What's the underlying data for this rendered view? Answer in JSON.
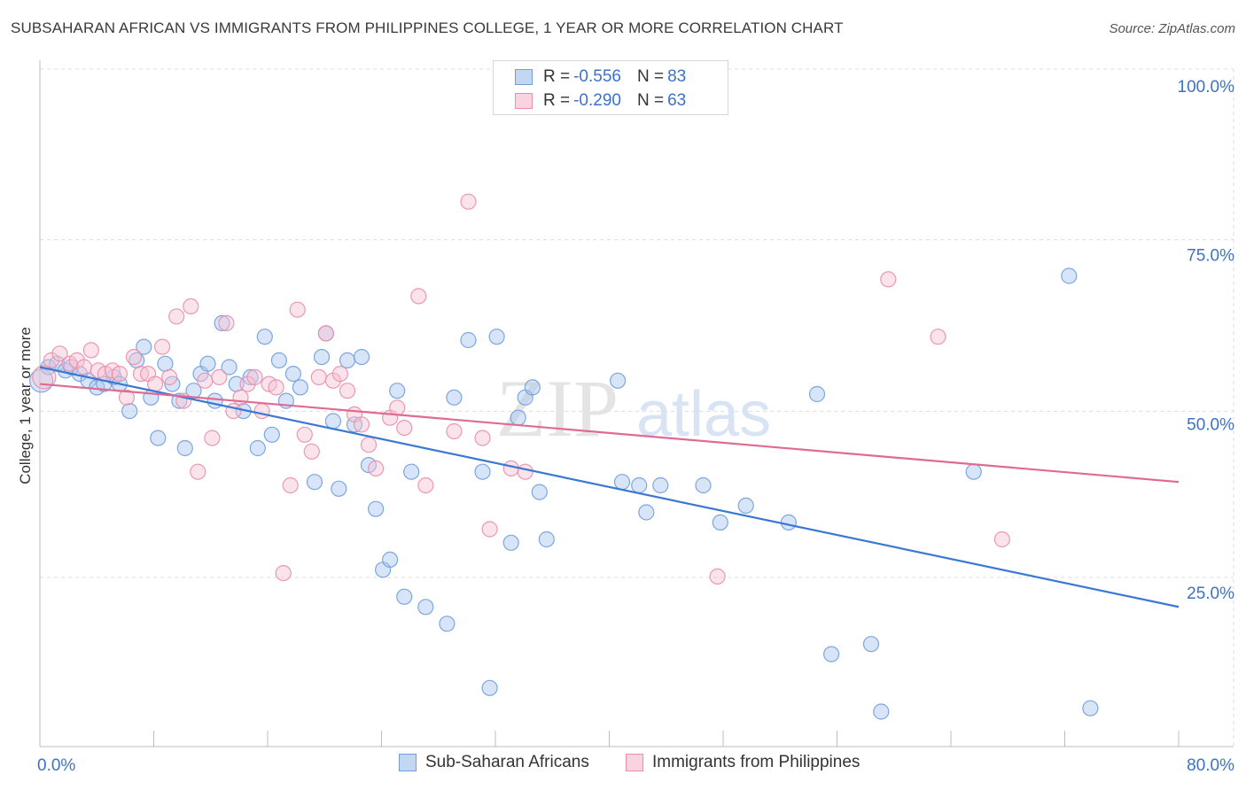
{
  "title": "SUBSAHARAN AFRICAN VS IMMIGRANTS FROM PHILIPPINES COLLEGE, 1 YEAR OR MORE CORRELATION CHART",
  "source": "Source: ZipAtlas.com",
  "watermark": {
    "zip": "ZIP",
    "atlas": "atlas"
  },
  "legend": {
    "r_label": "R =",
    "n_label": "N =",
    "series1": {
      "r": "-0.556",
      "n": "83"
    },
    "series2": {
      "r": "-0.290",
      "n": "63"
    }
  },
  "chart_data": {
    "type": "scatter",
    "ylabel": "College, 1 year or more",
    "xlim": [
      0,
      80
    ],
    "ylim": [
      0,
      100
    ],
    "x_tick_labels": [
      "0.0%",
      "80.0%"
    ],
    "y_ticks": [
      25,
      50,
      75,
      100
    ],
    "y_tick_labels": [
      "25.0%",
      "50.0%",
      "75.0%",
      "100.0%"
    ],
    "grid": true,
    "legend_position": "top-center",
    "colors": {
      "series1_fill": "#a9c6ef",
      "series1_stroke": "#6f9fdc",
      "series1_line": "#3a78d4",
      "series2_fill": "#f6c2d3",
      "series2_stroke": "#ea8eab",
      "series2_line": "#e06a94",
      "tick_label": "#3b72c7"
    },
    "series": [
      {
        "name": "Sub-Saharan Africans",
        "trendline": {
          "x": [
            0,
            80
          ],
          "y": [
            58.5,
            23
          ]
        },
        "points": [
          [
            0.1,
            56.5
          ],
          [
            0.6,
            58.5
          ],
          [
            1.2,
            59.0
          ],
          [
            1.8,
            58.0
          ],
          [
            2.2,
            58.5
          ],
          [
            2.8,
            57.5
          ],
          [
            3.4,
            56.5
          ],
          [
            4.0,
            55.5
          ],
          [
            4.5,
            56.0
          ],
          [
            5.2,
            57.0
          ],
          [
            5.6,
            56.0
          ],
          [
            6.3,
            52.0
          ],
          [
            6.8,
            59.5
          ],
          [
            7.3,
            61.5
          ],
          [
            7.8,
            54.0
          ],
          [
            8.3,
            48.0
          ],
          [
            8.8,
            59.0
          ],
          [
            9.3,
            56.0
          ],
          [
            9.8,
            53.5
          ],
          [
            10.2,
            46.5
          ],
          [
            10.8,
            55.0
          ],
          [
            11.3,
            57.5
          ],
          [
            11.8,
            59.0
          ],
          [
            12.3,
            53.5
          ],
          [
            12.8,
            65.0
          ],
          [
            13.3,
            58.5
          ],
          [
            13.8,
            56.0
          ],
          [
            14.3,
            52.0
          ],
          [
            14.8,
            57.0
          ],
          [
            15.3,
            46.5
          ],
          [
            15.8,
            63.0
          ],
          [
            16.3,
            48.5
          ],
          [
            16.8,
            59.5
          ],
          [
            17.3,
            53.5
          ],
          [
            17.8,
            57.5
          ],
          [
            18.3,
            55.5
          ],
          [
            19.3,
            41.5
          ],
          [
            19.8,
            60.0
          ],
          [
            20.1,
            63.5
          ],
          [
            20.6,
            50.5
          ],
          [
            21.0,
            40.5
          ],
          [
            21.6,
            59.5
          ],
          [
            22.1,
            50.0
          ],
          [
            22.6,
            60.0
          ],
          [
            23.1,
            44.0
          ],
          [
            23.6,
            37.5
          ],
          [
            24.1,
            28.5
          ],
          [
            24.6,
            30.0
          ],
          [
            25.1,
            55.0
          ],
          [
            25.6,
            24.5
          ],
          [
            26.1,
            43.0
          ],
          [
            27.1,
            23.0
          ],
          [
            28.6,
            20.5
          ],
          [
            29.1,
            54.0
          ],
          [
            30.1,
            62.5
          ],
          [
            31.1,
            43.0
          ],
          [
            31.6,
            11.0
          ],
          [
            32.1,
            63.0
          ],
          [
            33.1,
            32.5
          ],
          [
            33.6,
            51.0
          ],
          [
            34.1,
            54.0
          ],
          [
            34.6,
            55.5
          ],
          [
            35.1,
            40.0
          ],
          [
            35.6,
            33.0
          ],
          [
            40.6,
            56.5
          ],
          [
            40.9,
            41.5
          ],
          [
            42.1,
            41.0
          ],
          [
            42.6,
            37.0
          ],
          [
            43.6,
            41.0
          ],
          [
            46.6,
            41.0
          ],
          [
            47.8,
            35.5
          ],
          [
            49.6,
            38.0
          ],
          [
            52.6,
            35.5
          ],
          [
            54.6,
            54.5
          ],
          [
            55.6,
            16.0
          ],
          [
            58.4,
            17.5
          ],
          [
            59.1,
            7.5
          ],
          [
            65.6,
            43.0
          ],
          [
            72.3,
            72.0
          ],
          [
            73.8,
            8.0
          ]
        ]
      },
      {
        "name": "Immigrants from Philippines",
        "trendline": {
          "x": [
            0,
            80
          ],
          "y": [
            56,
            41.5
          ]
        },
        "points": [
          [
            0.3,
            57.0
          ],
          [
            0.8,
            59.5
          ],
          [
            1.4,
            60.5
          ],
          [
            2.1,
            59.0
          ],
          [
            2.6,
            59.5
          ],
          [
            3.1,
            58.5
          ],
          [
            3.6,
            61.0
          ],
          [
            4.1,
            58.0
          ],
          [
            4.6,
            57.5
          ],
          [
            5.1,
            58.0
          ],
          [
            5.6,
            57.5
          ],
          [
            6.1,
            54.0
          ],
          [
            6.6,
            60.0
          ],
          [
            7.1,
            57.5
          ],
          [
            7.6,
            57.5
          ],
          [
            8.1,
            56.0
          ],
          [
            8.6,
            61.5
          ],
          [
            9.1,
            57.0
          ],
          [
            9.6,
            66.0
          ],
          [
            10.1,
            53.5
          ],
          [
            10.6,
            67.5
          ],
          [
            11.1,
            43.0
          ],
          [
            11.6,
            56.5
          ],
          [
            12.1,
            48.0
          ],
          [
            12.6,
            57.0
          ],
          [
            13.1,
            65.0
          ],
          [
            13.6,
            52.0
          ],
          [
            14.1,
            54.0
          ],
          [
            14.6,
            56.0
          ],
          [
            15.1,
            57.0
          ],
          [
            15.6,
            52.0
          ],
          [
            16.1,
            56.0
          ],
          [
            16.6,
            55.5
          ],
          [
            17.1,
            28.0
          ],
          [
            17.6,
            41.0
          ],
          [
            18.1,
            67.0
          ],
          [
            18.6,
            48.5
          ],
          [
            19.1,
            46.0
          ],
          [
            19.6,
            57.0
          ],
          [
            20.1,
            63.5
          ],
          [
            20.6,
            56.5
          ],
          [
            21.1,
            57.5
          ],
          [
            21.6,
            55.0
          ],
          [
            22.1,
            51.5
          ],
          [
            22.6,
            50.0
          ],
          [
            23.1,
            47.0
          ],
          [
            23.6,
            43.5
          ],
          [
            24.6,
            51.0
          ],
          [
            25.1,
            52.5
          ],
          [
            25.6,
            49.5
          ],
          [
            26.6,
            69.0
          ],
          [
            27.1,
            41.0
          ],
          [
            29.1,
            49.0
          ],
          [
            30.1,
            83.0
          ],
          [
            31.1,
            48.0
          ],
          [
            31.6,
            34.5
          ],
          [
            33.1,
            43.5
          ],
          [
            34.1,
            43.0
          ],
          [
            47.6,
            27.5
          ],
          [
            59.6,
            71.5
          ],
          [
            63.1,
            63.0
          ],
          [
            67.6,
            33.0
          ]
        ]
      }
    ]
  }
}
